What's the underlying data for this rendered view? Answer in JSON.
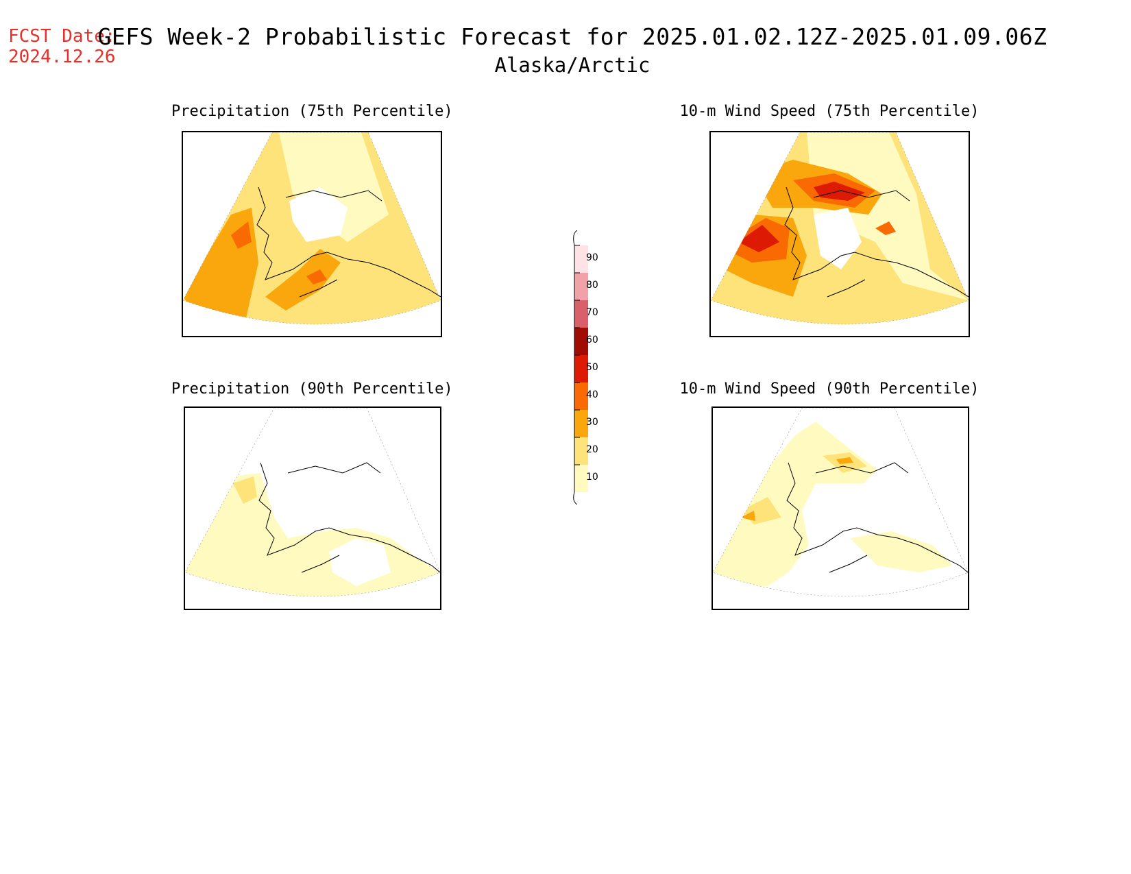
{
  "header": {
    "fcst_label": "FCST Date:",
    "fcst_date": "2024.12.26",
    "title": "GEFS Week-2 Probabilistic Forecast for 2025.01.02.12Z-2025.01.09.06Z",
    "subtitle": "Alaska/Arctic"
  },
  "panels": [
    {
      "id": "precip75",
      "title": "Precipitation (75th Percentile)"
    },
    {
      "id": "wind75",
      "title": "10-m Wind Speed (75th Percentile)"
    },
    {
      "id": "precip90",
      "title": "Precipitation (90th Percentile)"
    },
    {
      "id": "wind90",
      "title": "10-m Wind Speed (90th Percentile)"
    }
  ],
  "colorbar": {
    "levels": [
      "10",
      "20",
      "30",
      "40",
      "50",
      "60",
      "70",
      "80",
      "90"
    ],
    "colors": {
      "c10": "#fffbc0",
      "c20": "#fde37a",
      "c30": "#f9a70c",
      "c40": "#f96a03",
      "c50": "#dd1b05",
      "c60": "#a00b02",
      "c70": "#d9606a",
      "c80": "#f0a2a8",
      "c90": "#fde3e5"
    }
  },
  "map_colors": {
    "coast": "#000000",
    "grid": "#777777",
    "title_red": "#e8302a"
  }
}
